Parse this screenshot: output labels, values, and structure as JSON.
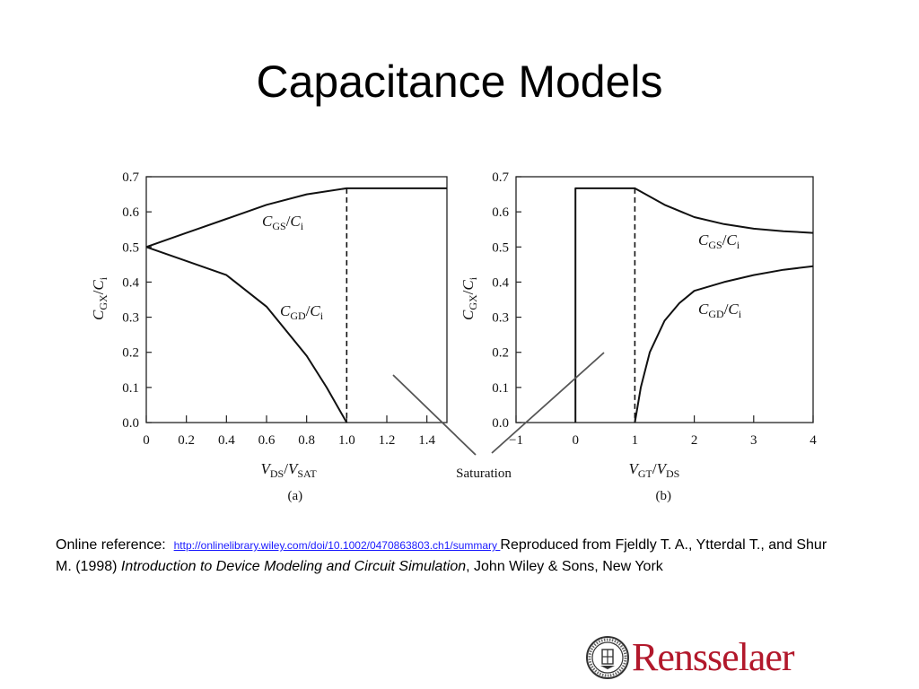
{
  "slide": {
    "title": "Capacitance Models"
  },
  "chart_data": [
    {
      "type": "line",
      "panel_label": "(a)",
      "xlabel": "V_DS/V_SAT",
      "ylabel": "C_GX/C_i",
      "xlim": [
        0,
        1.5
      ],
      "ylim": [
        0,
        0.7
      ],
      "x_ticks": [
        "0",
        "0.2",
        "0.4",
        "0.6",
        "0.8",
        "1.0",
        "1.2",
        "1.4"
      ],
      "y_ticks": [
        "0.0",
        "0.1",
        "0.2",
        "0.3",
        "0.4",
        "0.5",
        "0.6",
        "0.7"
      ],
      "series": [
        {
          "name": "C_GS/C_i",
          "x": [
            0,
            0.2,
            0.4,
            0.6,
            0.8,
            1.0,
            1.5
          ],
          "y": [
            0.5,
            0.54,
            0.58,
            0.62,
            0.65,
            0.667,
            0.667
          ]
        },
        {
          "name": "C_GD/C_i",
          "x": [
            0,
            0.2,
            0.4,
            0.6,
            0.8,
            0.9,
            1.0
          ],
          "y": [
            0.5,
            0.46,
            0.42,
            0.33,
            0.19,
            0.1,
            0.0
          ]
        }
      ],
      "annotations": [
        {
          "type": "vline",
          "x": 1.0,
          "style": "dashed"
        }
      ]
    },
    {
      "type": "line",
      "panel_label": "(b)",
      "xlabel": "V_GT/V_DS",
      "ylabel": "C_GX/C_i",
      "xlim": [
        -1,
        4
      ],
      "ylim": [
        0,
        0.7
      ],
      "x_ticks": [
        "−1",
        "0",
        "1",
        "2",
        "3",
        "4"
      ],
      "y_ticks": [
        "0.0",
        "0.1",
        "0.2",
        "0.3",
        "0.4",
        "0.5",
        "0.6",
        "0.7"
      ],
      "series": [
        {
          "name": "C_GS/C_i",
          "x": [
            0,
            0,
            1,
            1.5,
            2,
            2.5,
            3,
            3.5,
            4
          ],
          "y": [
            0,
            0.667,
            0.667,
            0.62,
            0.585,
            0.565,
            0.552,
            0.545,
            0.54
          ]
        },
        {
          "name": "C_GD/C_i",
          "x": [
            1,
            1.1,
            1.25,
            1.5,
            1.75,
            2,
            2.5,
            3,
            3.5,
            4
          ],
          "y": [
            0,
            0.1,
            0.2,
            0.29,
            0.34,
            0.375,
            0.4,
            0.42,
            0.435,
            0.445
          ]
        }
      ],
      "annotations": [
        {
          "type": "vline",
          "x": 1,
          "style": "dashed"
        }
      ]
    }
  ],
  "callout": {
    "label": "Saturation"
  },
  "reference": {
    "prefix": "Online reference:",
    "link_text": "http://onlinelibrary.wiley.com/doi/10.1002/0470863803.ch1/summary ",
    "text1": "Reproduced from Fjeldly T. A., Ytterdal T., and Shur M. (1998) ",
    "book_title": "Introduction to Device Modeling and Circuit Simulation",
    "text2": ", John Wiley & Sons, New York"
  },
  "logo": {
    "name": "Rensselaer",
    "accent": "#b2182b"
  }
}
